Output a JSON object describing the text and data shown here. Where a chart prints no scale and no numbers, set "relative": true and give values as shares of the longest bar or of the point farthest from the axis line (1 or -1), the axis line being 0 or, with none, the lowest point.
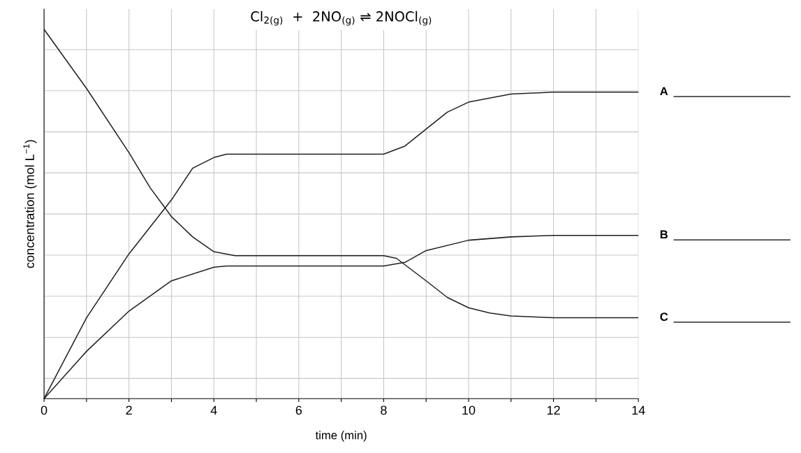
{
  "chart_data": {
    "type": "line",
    "title": "Cl$_{2(g)}$  +  2NO$_{(g)}$ ⇌ 2NOCl$_{(g)}$",
    "xlabel": "time (min)",
    "ylabel": "concentration (mol L$^{−1}$)",
    "relative": true,
    "xlim": [
      0,
      14
    ],
    "xticks": [
      0,
      {
        "value": 1,
        "label": null
      },
      2,
      {
        "value": 3,
        "label": null
      },
      4,
      {
        "value": 5,
        "label": null
      },
      6,
      {
        "value": 7,
        "label": null
      },
      8,
      {
        "value": 9,
        "label": null
      },
      10,
      {
        "value": 11,
        "label": null
      },
      12,
      {
        "value": 13,
        "label": null
      },
      14
    ],
    "grid": true,
    "marker": "none",
    "line_style": "solid",
    "series": [
      {
        "name": "A",
        "color": "#231f20",
        "x": [
          0,
          1,
          2,
          3,
          3.5,
          4,
          4.3,
          8,
          8.5,
          9,
          9.5,
          10,
          11,
          12,
          14
        ],
        "values": [
          0,
          0.219,
          0.392,
          0.538,
          0.624,
          0.653,
          0.662,
          0.662,
          0.684,
          0.73,
          0.776,
          0.803,
          0.825,
          0.83,
          0.83
        ]
      },
      {
        "name": "B",
        "color": "#231f20",
        "x": [
          0,
          1,
          2,
          3,
          4,
          4.3,
          8,
          8.5,
          9,
          10,
          11,
          12,
          14
        ],
        "values": [
          0,
          0.128,
          0.237,
          0.319,
          0.356,
          0.359,
          0.359,
          0.369,
          0.401,
          0.429,
          0.438,
          0.442,
          0.442
        ]
      },
      {
        "name": "C",
        "color": "#231f20",
        "x": [
          0,
          1,
          2,
          2.5,
          3,
          3.5,
          4,
          4.5,
          8,
          8.3,
          9,
          9.5,
          10,
          10.5,
          11,
          12,
          14
        ],
        "values": [
          1.0,
          0.84,
          0.666,
          0.571,
          0.493,
          0.438,
          0.398,
          0.387,
          0.387,
          0.38,
          0.319,
          0.274,
          0.246,
          0.232,
          0.224,
          0.219,
          0.219
        ]
      }
    ]
  }
}
